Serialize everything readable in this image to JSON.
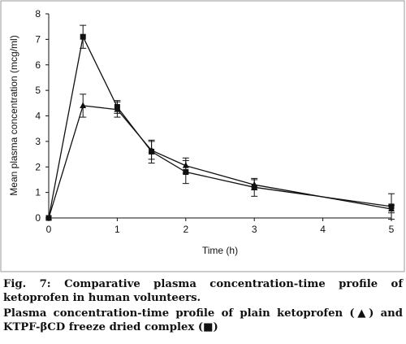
{
  "chart_data": {
    "type": "line",
    "title": "",
    "xlabel": "Time (h)",
    "ylabel": "Mean plasma concentration (mcg/ml)",
    "xlim": [
      0,
      5
    ],
    "ylim": [
      0,
      8
    ],
    "x_ticks": [
      "0",
      "1",
      "2",
      "3",
      "4",
      "5"
    ],
    "y_ticks": [
      "0",
      "1",
      "2",
      "3",
      "4",
      "5",
      "6",
      "7",
      "8"
    ],
    "grid": false,
    "legend": "none",
    "series": [
      {
        "marker": "triangle",
        "color": "#111111",
        "x": [
          0,
          0.5,
          1,
          1.5,
          2,
          3,
          5
        ],
        "y": [
          0,
          4.4,
          4.25,
          2.65,
          2.05,
          1.3,
          0.35
        ],
        "err": [
          0,
          0.45,
          0.3,
          0.35,
          0.3,
          0.2,
          0.15
        ]
      },
      {
        "marker": "square",
        "color": "#111111",
        "x": [
          0,
          0.5,
          1,
          1.5,
          2,
          3,
          5
        ],
        "y": [
          0,
          7.1,
          4.35,
          2.6,
          1.8,
          1.2,
          0.45
        ],
        "err": [
          0,
          0.45,
          0.25,
          0.45,
          0.45,
          0.35,
          0.5
        ]
      }
    ]
  },
  "caption": {
    "figure_text": "Fig. 7: Comparative plasma concentration-time profile of ketoprofen in human volunteers.",
    "legend_prefix": "Plasma concentration-time profile of plain ketoprofen (",
    "legend_mark_1": "▲",
    "legend_mid": ") and KTPF-",
    "legend_beta": "β",
    "legend_mid2": "CD freeze dried complex (",
    "legend_mark_2": "■",
    "legend_suffix": ")"
  }
}
